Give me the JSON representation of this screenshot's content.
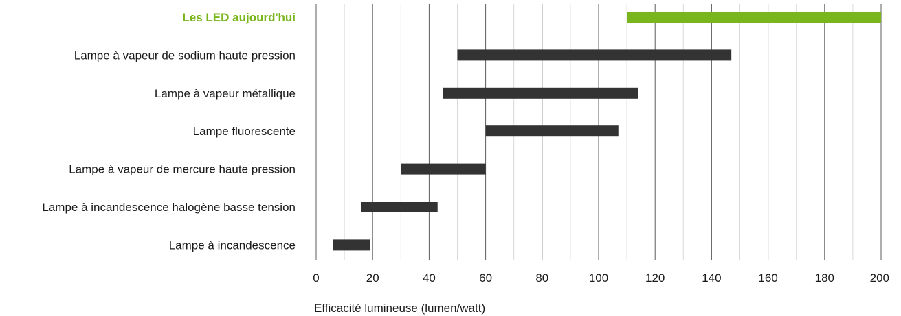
{
  "chart_data": {
    "type": "bar",
    "orientation": "horizontal",
    "subtype": "floating-range",
    "xlabel": "Efficacité lumineuse (lumen/watt)",
    "xlim": [
      0,
      200
    ],
    "xticks": [
      0,
      20,
      40,
      60,
      80,
      100,
      120,
      140,
      160,
      180,
      200
    ],
    "grid": true,
    "categories": [
      "Les LED aujourd'hui",
      "Lampe à vapeur de sodium haute pression",
      "Lampe à vapeur métallique",
      "Lampe fluorescente",
      "Lampe à vapeur de mercure haute pression",
      "Lampe à incandescence halogène basse tension",
      "Lampe à incandescence"
    ],
    "ranges": [
      {
        "min": 110,
        "max": 200
      },
      {
        "min": 50,
        "max": 147
      },
      {
        "min": 45,
        "max": 114
      },
      {
        "min": 60,
        "max": 107
      },
      {
        "min": 30,
        "max": 60
      },
      {
        "min": 16,
        "max": 43
      },
      {
        "min": 6,
        "max": 19
      }
    ],
    "highlight_index": 0,
    "colors": {
      "highlight": "#79b51c",
      "bar": "#333333",
      "major_grid": "#5c5c5c",
      "minor_grid": "#d9d9d9",
      "text": "#1a1a1a"
    }
  }
}
